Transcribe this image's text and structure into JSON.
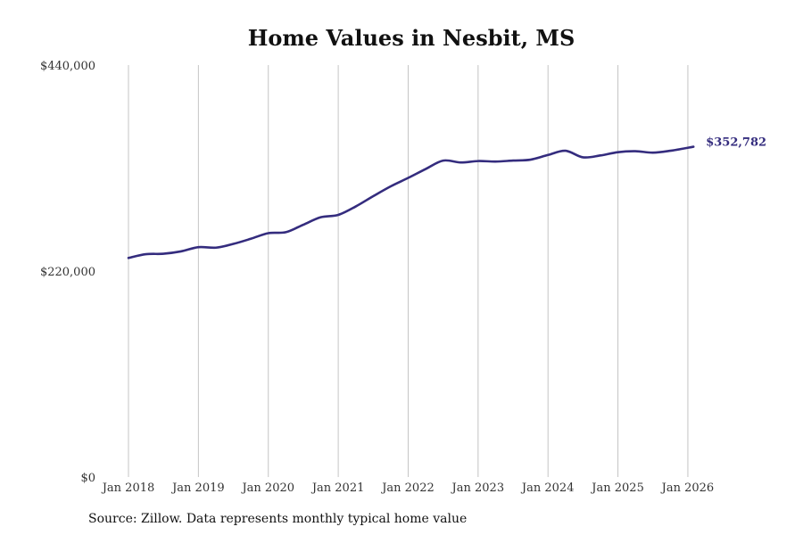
{
  "chart_data": {
    "type": "line",
    "title": "Home Values in Nesbit, MS",
    "xlabel": "",
    "ylabel": "",
    "ylim": [
      0,
      440000
    ],
    "y_ticks": [
      {
        "value": 0,
        "label": "$0"
      },
      {
        "value": 220000,
        "label": "$220,000"
      },
      {
        "value": 440000,
        "label": "$440,000"
      }
    ],
    "x_ticks": [
      {
        "value": 2018.0,
        "label": "Jan 2018"
      },
      {
        "value": 2019.0,
        "label": "Jan 2019"
      },
      {
        "value": 2020.0,
        "label": "Jan 2020"
      },
      {
        "value": 2021.0,
        "label": "Jan 2021"
      },
      {
        "value": 2022.0,
        "label": "Jan 2022"
      },
      {
        "value": 2023.0,
        "label": "Jan 2023"
      },
      {
        "value": 2024.0,
        "label": "Jan 2024"
      },
      {
        "value": 2025.0,
        "label": "Jan 2025"
      },
      {
        "value": 2026.0,
        "label": "Jan 2026"
      }
    ],
    "xlim": [
      2018.0,
      2026.09
    ],
    "grid": "vertical",
    "line_color": "#342c7e",
    "series": [
      {
        "name": "Typical home value",
        "x": [
          2018.0,
          2018.25,
          2018.5,
          2018.75,
          2019.0,
          2019.25,
          2019.5,
          2019.75,
          2020.0,
          2020.25,
          2020.5,
          2020.75,
          2021.0,
          2021.25,
          2021.5,
          2021.75,
          2022.0,
          2022.25,
          2022.5,
          2022.75,
          2023.0,
          2023.25,
          2023.5,
          2023.75,
          2024.0,
          2024.25,
          2024.5,
          2024.75,
          2025.0,
          2025.25,
          2025.5,
          2025.75,
          2026.08
        ],
        "values": [
          234000,
          238000,
          238500,
          241000,
          245500,
          245000,
          249000,
          254500,
          260500,
          261500,
          269500,
          277500,
          280000,
          289000,
          300000,
          310500,
          319500,
          329000,
          338000,
          336000,
          337500,
          337000,
          338000,
          339000,
          344000,
          348500,
          341500,
          343500,
          347000,
          348000,
          346500,
          348500,
          352782
        ]
      }
    ],
    "end_label": "$352,782"
  },
  "footer": {
    "source": "Source: Zillow. Data represents monthly typical home value"
  }
}
